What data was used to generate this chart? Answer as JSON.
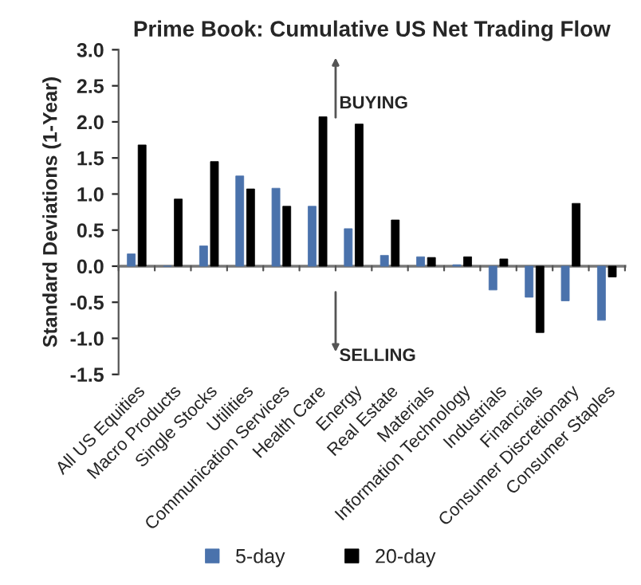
{
  "chart_data": {
    "type": "bar",
    "title": "Prime Book: Cumulative US Net Trading Flow",
    "ylabel": "Standard Deviations (1-Year)",
    "categories": [
      "All US Equities",
      "Macro Products",
      "Single Stocks",
      "Utilities",
      "Communication Services",
      "Health Care",
      "Energy",
      "Real Estate",
      "Materials",
      "Information Technology",
      "Industrials",
      "Financials",
      "Consumer Discretionary",
      "Consumer Staples"
    ],
    "series": [
      {
        "name": "5-day",
        "color": "#4a72ac",
        "values": [
          0.17,
          0.0,
          0.28,
          1.25,
          1.08,
          0.83,
          0.52,
          0.15,
          0.13,
          0.02,
          -0.33,
          -0.43,
          -0.48,
          -0.75
        ]
      },
      {
        "name": "20-day",
        "color": "#000000",
        "values": [
          1.68,
          0.93,
          1.45,
          1.07,
          0.83,
          2.07,
          1.97,
          0.64,
          0.12,
          0.13,
          0.1,
          -0.92,
          0.87,
          -0.15
        ]
      }
    ],
    "ylim": [
      -1.5,
      3.0
    ],
    "yticks": [
      {
        "value": -1.5,
        "label": "-1.5"
      },
      {
        "value": -1.0,
        "label": "-1.0"
      },
      {
        "value": -0.5,
        "label": "-0.5"
      },
      {
        "value": 0.0,
        "label": "0.0"
      },
      {
        "value": 0.5,
        "label": "0.5"
      },
      {
        "value": 1.0,
        "label": "1.0"
      },
      {
        "value": 1.5,
        "label": "1.5"
      },
      {
        "value": 2.0,
        "label": "2.0"
      },
      {
        "value": 2.5,
        "label": "2.5"
      },
      {
        "value": 3.0,
        "label": "3.0"
      }
    ],
    "annotations": [
      "BUYING",
      "SELLING"
    ],
    "legend": "bottom"
  }
}
